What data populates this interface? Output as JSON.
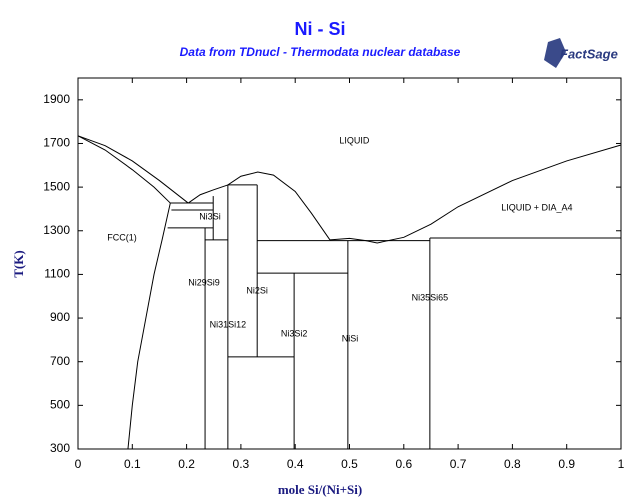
{
  "chart_data": {
    "type": "line",
    "title": "Ni - Si",
    "subtitle": "Data from TDnucl - Thermodata nuclear database",
    "logo": "FactSage",
    "x_label": "mole Si/(Ni+Si)",
    "y_label": "T(K)",
    "xlim": [
      0,
      1
    ],
    "xticks": [
      0,
      0.1,
      0.2,
      0.3,
      0.4,
      0.5,
      0.6,
      0.7,
      0.8,
      0.9,
      1
    ],
    "ylim": [
      300,
      2000
    ],
    "yticks": [
      300,
      500,
      700,
      900,
      1100,
      1300,
      1500,
      1700,
      1900
    ],
    "grid": false,
    "series": [
      {
        "color": "#000000",
        "x": [
          0,
          0.05,
          0.1,
          0.15,
          0.203
        ],
        "values": [
          1735,
          1690,
          1620,
          1530,
          1427
        ]
      },
      {
        "color": "#000000",
        "x": [
          0,
          0.05,
          0.1,
          0.14,
          0.17
        ],
        "values": [
          1735,
          1670,
          1580,
          1500,
          1427
        ]
      },
      {
        "color": "#000000",
        "x": [
          0.092,
          0.1,
          0.11,
          0.125,
          0.14,
          0.155,
          0.17
        ],
        "values": [
          300,
          500,
          700,
          900,
          1100,
          1260,
          1427
        ]
      },
      {
        "color": "#000000",
        "x": [
          0.203,
          0.225,
          0.249,
          0.276,
          0.3,
          0.331,
          0.36,
          0.4,
          0.43,
          0.464
        ],
        "values": [
          1427,
          1465,
          1487,
          1510,
          1550,
          1569,
          1555,
          1480,
          1380,
          1258
        ]
      },
      {
        "color": "#000000",
        "x": [
          0.464,
          0.5,
          0.53,
          0.551,
          0.6,
          0.65,
          0.7,
          0.8,
          0.9,
          1
        ],
        "values": [
          1258,
          1265,
          1255,
          1244,
          1270,
          1330,
          1410,
          1530,
          1620,
          1693
        ]
      },
      {
        "color": "#000000",
        "x": [
          0.17,
          0.249
        ],
        "values": [
          1427,
          1427
        ]
      },
      {
        "color": "#000000",
        "x": [
          0.172,
          0.249
        ],
        "values": [
          1395,
          1395
        ]
      },
      {
        "color": "#000000",
        "x": [
          0.165,
          0.249
        ],
        "values": [
          1313,
          1313
        ]
      },
      {
        "color": "#000000",
        "x": [
          0.249,
          0.249
        ],
        "values": [
          1459,
          1258
        ]
      },
      {
        "color": "#000000",
        "x": [
          0.234,
          0.234
        ],
        "values": [
          1313,
          300
        ]
      },
      {
        "color": "#000000",
        "x": [
          0.234,
          0.276
        ],
        "values": [
          1258,
          1258
        ]
      },
      {
        "color": "#000000",
        "x": [
          0.276,
          0.276
        ],
        "values": [
          1510,
          300
        ]
      },
      {
        "color": "#000000",
        "x": [
          0.276,
          0.33
        ],
        "values": [
          1510,
          1510
        ]
      },
      {
        "color": "#000000",
        "x": [
          0.33,
          0.33
        ],
        "values": [
          1510,
          722
        ]
      },
      {
        "color": "#000000",
        "x": [
          0.33,
          0.648
        ],
        "values": [
          1255,
          1255
        ]
      },
      {
        "color": "#000000",
        "x": [
          0.648,
          1
        ],
        "values": [
          1267,
          1267
        ]
      },
      {
        "color": "#000000",
        "x": [
          0.648,
          0.648
        ],
        "values": [
          1267,
          300
        ]
      },
      {
        "color": "#000000",
        "x": [
          0.33,
          0.497
        ],
        "values": [
          1106,
          1106
        ]
      },
      {
        "color": "#000000",
        "x": [
          0.497,
          0.497
        ],
        "values": [
          1255,
          300
        ]
      },
      {
        "color": "#000000",
        "x": [
          0.398,
          0.398
        ],
        "values": [
          1106,
          300
        ]
      },
      {
        "color": "#000000",
        "x": [
          0.276,
          0.398
        ],
        "values": [
          722,
          722
        ]
      }
    ],
    "annotations": [
      {
        "text": "LIQUID",
        "x": 0.509,
        "y": 1711
      },
      {
        "text": "LIQUID + DIA_A4",
        "x": 0.845,
        "y": 1404
      },
      {
        "text": "FCC(1)",
        "x": 0.081,
        "y": 1267
      },
      {
        "text": "Ni3Si",
        "x": 0.243,
        "y": 1363
      },
      {
        "text": "Ni29Si9",
        "x": 0.232,
        "y": 1061
      },
      {
        "text": "Ni2Si",
        "x": 0.33,
        "y": 1024
      },
      {
        "text": "Ni31Si12",
        "x": 0.276,
        "y": 868
      },
      {
        "text": "Ni3Si2",
        "x": 0.398,
        "y": 827
      },
      {
        "text": "NiSi",
        "x": 0.501,
        "y": 804
      },
      {
        "text": "Ni35Si65",
        "x": 0.648,
        "y": 992
      }
    ]
  }
}
